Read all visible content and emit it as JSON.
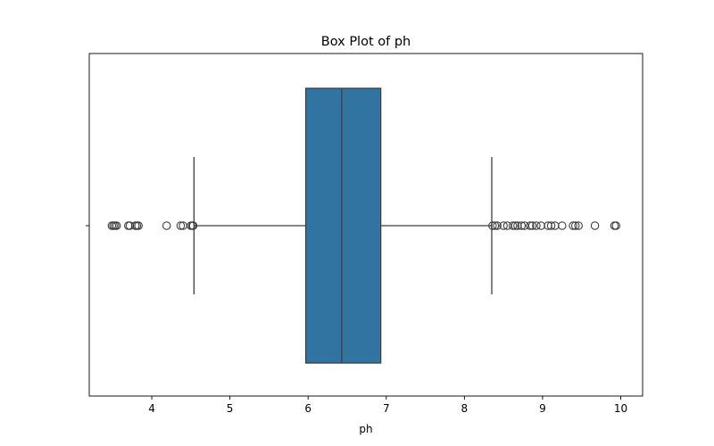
{
  "chart_data": {
    "type": "box",
    "title": "Box Plot of ph",
    "xlabel": "ph",
    "ylabel": "",
    "xlim": [
      3.2,
      10.28
    ],
    "xticks": [
      4,
      5,
      6,
      7,
      8,
      9,
      10
    ],
    "orientation": "horizontal",
    "grid": false,
    "box_color": "#3274a1",
    "edge_color": "#3f3f3f",
    "series": [
      {
        "whisker_low": 4.54,
        "q1": 5.97,
        "median": 6.43,
        "q3": 6.93,
        "whisker_high": 8.35,
        "outliers_low": [
          3.49,
          3.51,
          3.53,
          3.55,
          3.7,
          3.72,
          3.79,
          3.81,
          3.83,
          4.19,
          4.37,
          4.4,
          4.5,
          4.52,
          4.53
        ],
        "outliers_high": [
          8.36,
          8.39,
          8.42,
          8.5,
          8.55,
          8.62,
          8.65,
          8.68,
          8.73,
          8.77,
          8.84,
          8.87,
          8.92,
          8.98,
          9.07,
          9.11,
          9.16,
          9.25,
          9.39,
          9.42,
          9.46,
          9.67,
          9.92,
          9.94
        ]
      }
    ]
  }
}
